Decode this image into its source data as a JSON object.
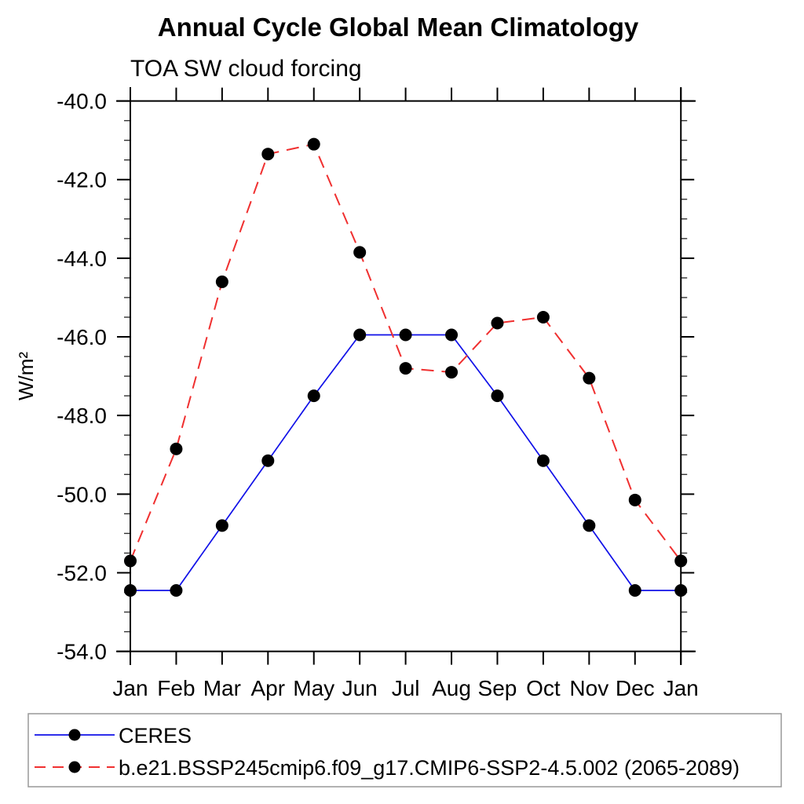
{
  "page": {
    "background": "#ffffff"
  },
  "chart_data": {
    "type": "line",
    "title": "Annual Cycle Global Mean Climatology",
    "subtitle": "TOA SW cloud forcing",
    "ylabel": "W/m²",
    "xlabel": "",
    "x_categories": [
      "Jan",
      "Feb",
      "Mar",
      "Apr",
      "May",
      "Jun",
      "Jul",
      "Aug",
      "Sep",
      "Oct",
      "Nov",
      "Dec",
      "Jan"
    ],
    "ylim": [
      -54.0,
      -40.0
    ],
    "ytick_values": [
      -40.0,
      -42.0,
      -44.0,
      -46.0,
      -48.0,
      -50.0,
      -52.0,
      -54.0
    ],
    "ytick_labels": [
      "-40.0",
      "-42.0",
      "-44.0",
      "-46.0",
      "-48.0",
      "-50.0",
      "-52.0",
      "-54.0"
    ],
    "ytick_minor_step": 0.5,
    "grid": false,
    "legend_position": "bottom",
    "axis_color": "#000000",
    "series": [
      {
        "name": "CERES",
        "color": "#1010e8",
        "line_style": "solid",
        "marker": "filled-circle",
        "marker_color": "#000000",
        "values": [
          -52.45,
          -52.45,
          -50.8,
          -49.15,
          -47.5,
          -45.95,
          -45.95,
          -45.95,
          -47.5,
          -49.15,
          -50.8,
          -52.45,
          -52.45
        ]
      },
      {
        "name": "b.e21.BSSP245cmip6.f09_g17.CMIP6-SSP2-4.5.002 (2065-2089)",
        "color": "#f03030",
        "line_style": "dashed",
        "marker": "filled-circle",
        "marker_color": "#000000",
        "values": [
          -51.7,
          -48.85,
          -44.6,
          -41.35,
          -41.1,
          -43.85,
          -46.8,
          -46.9,
          -45.65,
          -45.5,
          -47.05,
          -50.15,
          -51.7
        ]
      }
    ]
  }
}
